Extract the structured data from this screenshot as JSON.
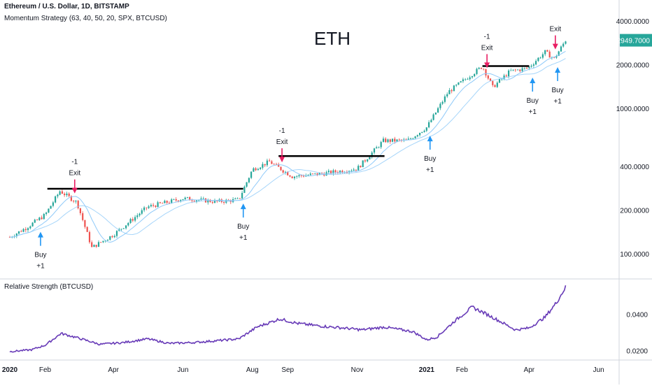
{
  "header": {
    "symbol_line": "Ethereum / U.S. Dollar, 1D, BITSTAMP",
    "indicator_line": "Momentum Strategy (63, 40, 50, 20, SPX, BTCUSD)",
    "watermark": "ETH",
    "pane2_title": "Relative Strength (BTCUSD)"
  },
  "colors": {
    "up": "#26a69a",
    "down": "#ef5350",
    "ma": "#90caf9",
    "rs_line": "#673ab7",
    "buy_arrow": "#2196f3",
    "exit_arrow": "#e91e63",
    "last_price_bg": "#26a69a"
  },
  "chart_data": [
    {
      "type": "candlestick",
      "title": "Ethereum / U.S. Dollar, 1D, BITSTAMP",
      "ylim": [
        70,
        5000
      ],
      "y_scale": "log",
      "y_ticks": [
        "4000.0000",
        "2000.0000",
        "1000.0000",
        "400.0000",
        "200.0000",
        "100.0000"
      ],
      "x_ticks": [
        "2020",
        "Feb",
        "Apr",
        "Jun",
        "Aug",
        "Sep",
        "Nov",
        "2021",
        "Feb",
        "Apr",
        "Jun"
      ],
      "last_price": "2949.7000",
      "price_path": [
        [
          "2020-01-01",
          130
        ],
        [
          "2020-01-15",
          150
        ],
        [
          "2020-02-01",
          185
        ],
        [
          "2020-02-14",
          270
        ],
        [
          "2020-02-29",
          225
        ],
        [
          "2020-03-13",
          110
        ],
        [
          "2020-04-01",
          135
        ],
        [
          "2020-05-01",
          210
        ],
        [
          "2020-06-01",
          240
        ],
        [
          "2020-07-01",
          228
        ],
        [
          "2020-07-20",
          235
        ],
        [
          "2020-08-01",
          380
        ],
        [
          "2020-08-16",
          430
        ],
        [
          "2020-09-05",
          340
        ],
        [
          "2020-10-01",
          355
        ],
        [
          "2020-11-01",
          385
        ],
        [
          "2020-11-24",
          600
        ],
        [
          "2020-12-15",
          600
        ],
        [
          "2021-01-01",
          740
        ],
        [
          "2021-01-20",
          1300
        ],
        [
          "2021-02-19",
          1950
        ],
        [
          "2021-02-28",
          1400
        ],
        [
          "2021-03-15",
          1800
        ],
        [
          "2021-03-31",
          1900
        ],
        [
          "2021-04-15",
          2450
        ],
        [
          "2021-04-23",
          2200
        ],
        [
          "2021-05-03",
          2950
        ]
      ],
      "signals": [
        {
          "date": "2020-01-28",
          "type": "buy",
          "label1": "Buy",
          "label2": "+1"
        },
        {
          "date": "2020-02-27",
          "type": "exit",
          "label1": "-1",
          "label2": "Exit"
        },
        {
          "date": "2020-07-24",
          "type": "buy",
          "label1": "Buy",
          "label2": "+1"
        },
        {
          "date": "2020-08-27",
          "type": "exit",
          "label1": "-1",
          "label2": "Exit"
        },
        {
          "date": "2021-01-04",
          "type": "buy",
          "label1": "Buy",
          "label2": "+1"
        },
        {
          "date": "2021-02-23",
          "type": "exit",
          "label1": "-1",
          "label2": "Exit"
        },
        {
          "date": "2021-04-04",
          "type": "buy",
          "label1": "Buy",
          "label2": "+1"
        },
        {
          "date": "2021-04-24",
          "type": "exit",
          "label1": "",
          "label2": "Exit"
        },
        {
          "date": "2021-04-26",
          "type": "buy",
          "label1": "Buy",
          "label2": "+1"
        }
      ],
      "levels": [
        {
          "start": "2020-02-03",
          "end": "2020-07-24",
          "value": 280
        },
        {
          "start": "2020-08-24",
          "end": "2020-11-25",
          "value": 470
        },
        {
          "start": "2021-02-19",
          "end": "2021-04-01",
          "value": 1960
        }
      ]
    },
    {
      "type": "line",
      "title": "Relative Strength (BTCUSD)",
      "ylim": [
        0.016,
        0.058
      ],
      "y_ticks": [
        "0.0400",
        "0.0200"
      ],
      "series": [
        {
          "name": "Relative Strength (BTCUSD)",
          "points": [
            [
              "2020-01-01",
              0.0195
            ],
            [
              "2020-01-20",
              0.0205
            ],
            [
              "2020-02-01",
              0.023
            ],
            [
              "2020-02-15",
              0.0295
            ],
            [
              "2020-03-01",
              0.027
            ],
            [
              "2020-03-20",
              0.0235
            ],
            [
              "2020-04-10",
              0.0245
            ],
            [
              "2020-05-01",
              0.0265
            ],
            [
              "2020-05-20",
              0.024
            ],
            [
              "2020-06-10",
              0.0245
            ],
            [
              "2020-07-01",
              0.0255
            ],
            [
              "2020-07-20",
              0.0265
            ],
            [
              "2020-08-05",
              0.033
            ],
            [
              "2020-08-25",
              0.0375
            ],
            [
              "2020-09-10",
              0.035
            ],
            [
              "2020-10-01",
              0.0335
            ],
            [
              "2020-10-20",
              0.0325
            ],
            [
              "2020-11-05",
              0.0315
            ],
            [
              "2020-11-25",
              0.033
            ],
            [
              "2020-12-20",
              0.0305
            ],
            [
              "2021-01-01",
              0.026
            ],
            [
              "2021-01-10",
              0.0275
            ],
            [
              "2021-01-25",
              0.036
            ],
            [
              "2021-02-10",
              0.044
            ],
            [
              "2021-02-20",
              0.041
            ],
            [
              "2021-03-01",
              0.038
            ],
            [
              "2021-03-20",
              0.0315
            ],
            [
              "2021-04-01",
              0.0325
            ],
            [
              "2021-04-15",
              0.0385
            ],
            [
              "2021-04-25",
              0.0465
            ],
            [
              "2021-05-03",
              0.055
            ]
          ]
        }
      ]
    }
  ]
}
